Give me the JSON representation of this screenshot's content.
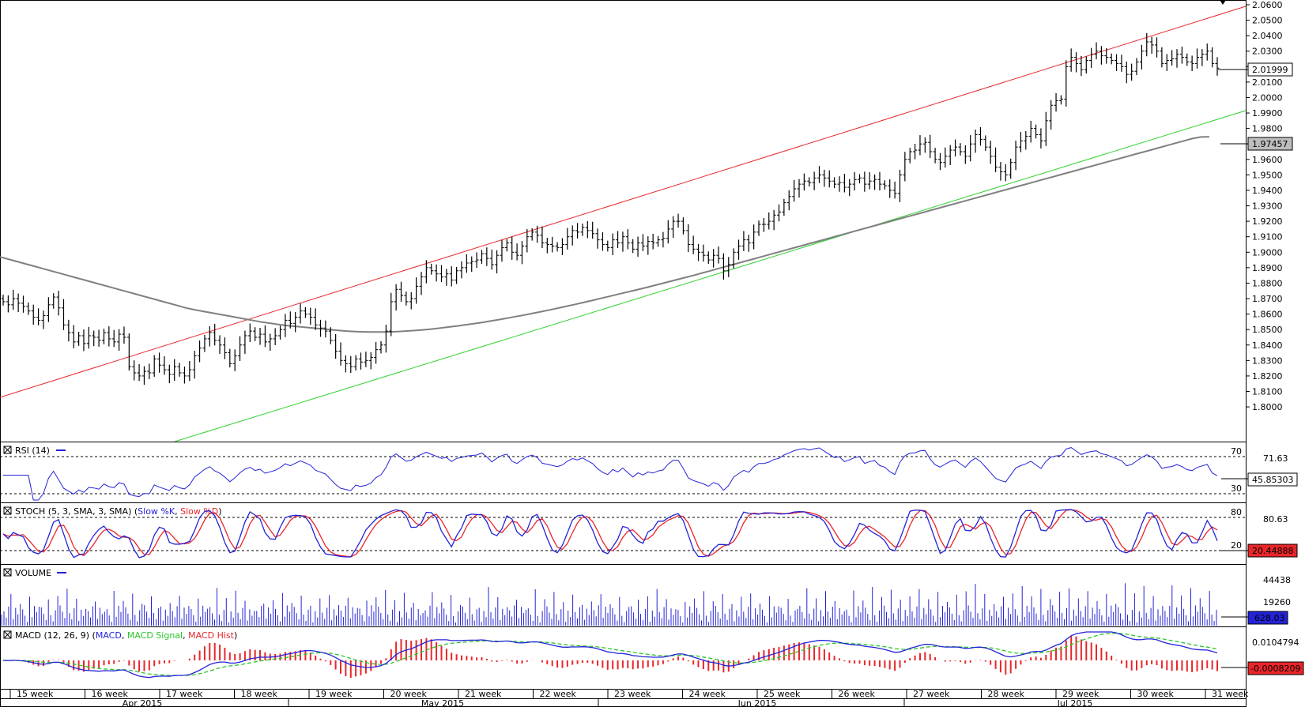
{
  "chart_data": [
    {
      "type": "line",
      "panel": "price",
      "series_note_candles": "OHLC bars, black",
      "y_ticks": [
        "2.0600",
        "2.0500",
        "2.0400",
        "2.0300",
        "2.0200",
        "2.0100",
        "2.0000",
        "1.9900",
        "1.9800",
        "1.9700",
        "1.9600",
        "1.9500",
        "1.9400",
        "1.9300",
        "1.9200",
        "1.9100",
        "1.9000",
        "1.8900",
        "1.8800",
        "1.8700",
        "1.8600",
        "1.8500",
        "1.8400",
        "1.8300",
        "1.8200",
        "1.8100",
        "1.8000"
      ],
      "ylim": [
        1.795,
        2.062
      ],
      "last_price_label": "2.01999",
      "ma_label": "1.97457",
      "close": [
        1.868,
        1.866,
        1.87,
        1.867,
        1.865,
        1.862,
        1.858,
        1.856,
        1.859,
        1.866,
        1.871,
        1.864,
        1.853,
        1.848,
        1.842,
        1.846,
        1.841,
        1.846,
        1.845,
        1.843,
        1.848,
        1.844,
        1.842,
        1.847,
        1.845,
        1.826,
        1.822,
        1.82,
        1.823,
        1.822,
        1.831,
        1.827,
        1.824,
        1.821,
        1.826,
        1.822,
        1.82,
        1.824,
        1.833,
        1.838,
        1.844,
        1.848,
        1.843,
        1.84,
        1.835,
        1.828,
        1.833,
        1.84,
        1.846,
        1.849,
        1.845,
        1.847,
        1.842,
        1.844,
        1.846,
        1.85,
        1.856,
        1.854,
        1.858,
        1.862,
        1.86,
        1.858,
        1.853,
        1.851,
        1.849,
        1.843,
        1.836,
        1.83,
        1.828,
        1.826,
        1.831,
        1.829,
        1.83,
        1.832,
        1.837,
        1.84,
        1.849,
        1.868,
        1.876,
        1.872,
        1.868,
        1.87,
        1.878,
        1.884,
        1.89,
        1.888,
        1.886,
        1.884,
        1.886,
        1.882,
        1.888,
        1.89,
        1.893,
        1.894,
        1.895,
        1.899,
        1.896,
        1.892,
        1.898,
        1.903,
        1.906,
        1.9,
        1.898,
        1.904,
        1.91,
        1.913,
        1.911,
        1.906,
        1.905,
        1.904,
        1.903,
        1.905,
        1.91,
        1.914,
        1.913,
        1.916,
        1.914,
        1.912,
        1.908,
        1.905,
        1.903,
        1.908,
        1.906,
        1.91,
        1.906,
        1.902,
        1.906,
        1.904,
        1.907,
        1.906,
        1.908,
        1.909,
        1.915,
        1.92,
        1.92,
        1.914,
        1.905,
        1.902,
        1.9,
        1.898,
        1.895,
        1.898,
        1.896,
        1.888,
        1.892,
        1.9,
        1.904,
        1.908,
        1.906,
        1.913,
        1.918,
        1.918,
        1.92,
        1.924,
        1.926,
        1.932,
        1.936,
        1.941,
        1.944,
        1.946,
        1.945,
        1.948,
        1.95,
        1.948,
        1.946,
        1.944,
        1.945,
        1.942,
        1.944,
        1.947,
        1.948,
        1.944,
        1.946,
        1.947,
        1.944,
        1.943,
        1.94,
        1.938,
        1.95,
        1.96,
        1.965,
        1.966,
        1.97,
        1.971,
        1.965,
        1.96,
        1.958,
        1.962,
        1.966,
        1.968,
        1.965,
        1.962,
        1.97,
        1.976,
        1.973,
        1.968,
        1.962,
        1.955,
        1.952,
        1.95,
        1.958,
        1.968,
        1.972,
        1.975,
        1.98,
        1.976,
        1.972,
        1.985,
        1.995,
        1.998,
        1.999,
        2.02,
        2.026,
        2.022,
        2.018,
        2.024,
        2.028,
        2.03,
        2.027,
        2.026,
        2.024,
        2.022,
        2.02,
        2.015,
        2.017,
        2.023,
        2.03,
        2.036,
        2.034,
        2.03,
        2.022,
        2.024,
        2.025,
        2.028,
        2.026,
        2.023,
        2.022,
        2.026,
        2.028,
        2.03,
        2.022,
        2.019
      ],
      "ma": [
        1.897,
        1.8955,
        1.894,
        1.8925,
        1.891,
        1.8895,
        1.888,
        1.8865,
        1.885,
        1.8835,
        1.882,
        1.8805,
        1.879,
        1.8775,
        1.876,
        1.8745,
        1.873,
        1.8715,
        1.87,
        1.8685,
        1.867,
        1.8655,
        1.864,
        1.8628,
        1.8618,
        1.8608,
        1.8598,
        1.8588,
        1.8578,
        1.8568,
        1.8558,
        1.8548,
        1.854,
        1.8532,
        1.8525,
        1.852,
        1.8515,
        1.851,
        1.8505,
        1.85,
        1.8495,
        1.849,
        1.8487,
        1.8485,
        1.8484,
        1.8484,
        1.8485,
        1.8487,
        1.849,
        1.8494,
        1.8498,
        1.8503,
        1.8509,
        1.8516,
        1.8523,
        1.853,
        1.8538,
        1.8546,
        1.8555,
        1.8564,
        1.8574,
        1.8584,
        1.8594,
        1.8605,
        1.8616,
        1.8627,
        1.8639,
        1.8651,
        1.8663,
        1.8675,
        1.8688,
        1.8701,
        1.8714,
        1.8727,
        1.874,
        1.8753,
        1.8766,
        1.878,
        1.8794,
        1.8808,
        1.8822,
        1.8836,
        1.885,
        1.8865,
        1.888,
        1.8895,
        1.891,
        1.8925,
        1.894,
        1.8955,
        1.897,
        1.8985,
        1.9,
        1.9015,
        1.903,
        1.9045,
        1.906,
        1.9075,
        1.909,
        1.9105,
        1.912,
        1.9135,
        1.915,
        1.9165,
        1.918,
        1.9195,
        1.921,
        1.9225,
        1.924,
        1.9255,
        1.927,
        1.9285,
        1.93,
        1.9315,
        1.933,
        1.9345,
        1.936,
        1.9375,
        1.939,
        1.9405,
        1.942,
        1.9435,
        1.945,
        1.9465,
        1.948,
        1.9495,
        1.951,
        1.9525,
        1.954,
        1.9555,
        1.957,
        1.9585,
        1.96,
        1.9615,
        1.963,
        1.9645,
        1.966,
        1.9675,
        1.969,
        1.9705,
        1.972,
        1.9735,
        1.9745,
        1.9746
      ]
    },
    {
      "type": "line",
      "panel": "rsi",
      "title": "RSI (14)",
      "levels": [
        "70",
        "30"
      ],
      "right_labels": [
        "71.63"
      ],
      "last_value_label": "45.85303"
    },
    {
      "type": "line",
      "panel": "stoch",
      "title_parts": [
        "STOCH (5, 3, SMA, 3, SMA)",
        "Slow %K",
        "Slow %D"
      ],
      "levels": [
        "80",
        "20"
      ],
      "right_labels": [
        "80.63"
      ],
      "last_value_label": "20.44888"
    },
    {
      "type": "bar",
      "panel": "volume",
      "title": "VOLUME",
      "right_labels": [
        "44438",
        "19260"
      ],
      "last_value_label": "628.03"
    },
    {
      "type": "line",
      "panel": "macd",
      "title_parts": [
        "MACD (12, 26, 9)",
        "MACD",
        "MACD Signal",
        "MACD Hist"
      ],
      "right_labels": [
        "0.0104794"
      ],
      "last_value_label": "-0.0008209"
    }
  ],
  "x_axis": {
    "weeks": [
      "15 week",
      "16 week",
      "17 week",
      "18 week",
      "19 week",
      "20 week",
      "21 week",
      "22 week",
      "23 week",
      "24 week",
      "25 week",
      "26 week",
      "27 week",
      "28 week",
      "29 week",
      "30 week",
      "31 week"
    ],
    "months": [
      "Apr 2015",
      "May 2015",
      "Jun 2015",
      "Jul 2015"
    ]
  },
  "colors": {
    "channel_upper": "#e8262a",
    "channel_lower": "#2fd12f",
    "ma": "#808080",
    "rsi": "#2323d8",
    "stoch_k": "#2323d8",
    "stoch_d": "#e8262a",
    "volume": "#2323d8",
    "macd": "#2323d8",
    "macd_signal": "#29c729",
    "macd_hist": "#e8262a",
    "label_box": "#2323d8"
  }
}
